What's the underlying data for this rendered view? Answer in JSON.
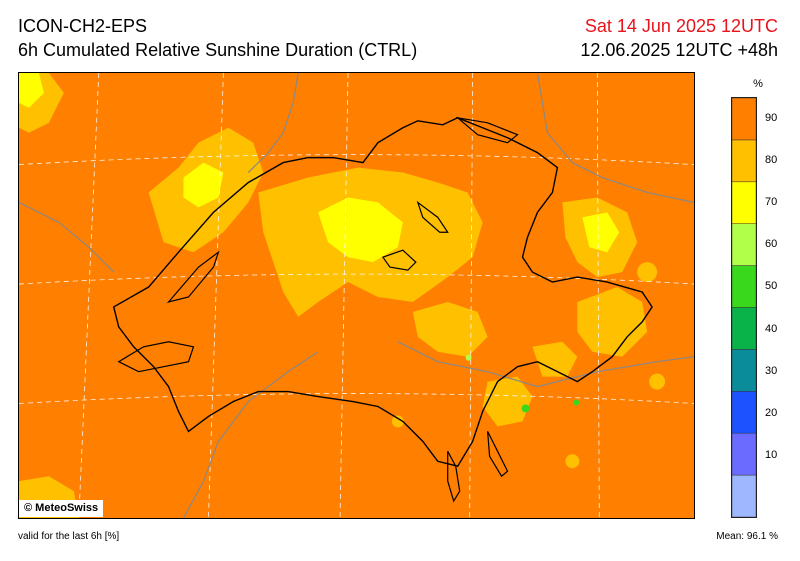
{
  "header": {
    "model": "ICON-CH2-EPS",
    "product": "6h Cumulated Relative Sunshine Duration (CTRL)",
    "valid_date": "Sat 14 Jun 2025 12UTC",
    "run_info": "12.06.2025 12UTC +48h"
  },
  "map": {
    "background_color": "#ff7f00",
    "copyright": "© MeteoSwiss"
  },
  "legend": {
    "unit": "%",
    "classes": [
      {
        "label": "",
        "color": "#9fb7ff"
      },
      {
        "label": "10",
        "color": "#6b6bff"
      },
      {
        "label": "20",
        "color": "#1c52ff"
      },
      {
        "label": "30",
        "color": "#0a8c9a"
      },
      {
        "label": "40",
        "color": "#0ab24a"
      },
      {
        "label": "50",
        "color": "#3ad81c"
      },
      {
        "label": "60",
        "color": "#b2ff4a"
      },
      {
        "label": "70",
        "color": "#ffff00"
      },
      {
        "label": "80",
        "color": "#ffc000"
      },
      {
        "label": "90",
        "color": "#ff7f00"
      }
    ]
  },
  "footer": {
    "validity": "valid for the last 6h [%]",
    "mean": "Mean:  96.1 %"
  }
}
